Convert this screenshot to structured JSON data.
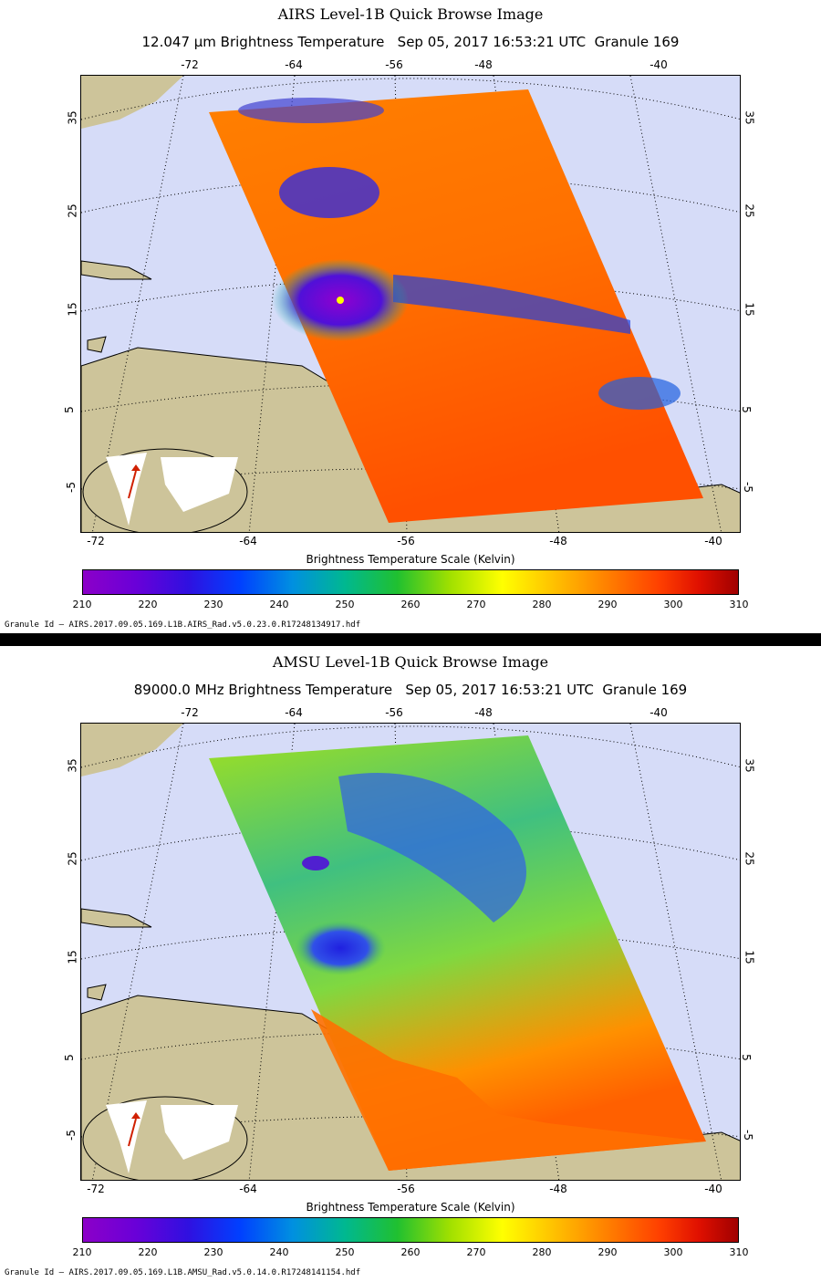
{
  "panels": [
    {
      "title": "AIRS Level-1B Quick Browse Image",
      "subtitle": "12.047 μm Brightness Temperature   Sep 05, 2017 16:53:21 UTC  Granule 169",
      "colorbar_title": "Brightness Temperature Scale (Kelvin)",
      "granule": "Granule Id — AIRS.2017.09.05.169.L1B.AIRS_Rad.v5.0.23.0.R17248134917.hdf",
      "swath_style": "ir"
    },
    {
      "title": "AMSU Level-1B Quick Browse Image",
      "subtitle": "89000.0 MHz Brightness Temperature   Sep 05, 2017 16:53:21 UTC  Granule 169",
      "colorbar_title": "Brightness Temperature Scale (Kelvin)",
      "granule": "Granule Id — AIRS.2017.09.05.169.L1B.AMSU_Rad.v5.0.14.0.R17248141154.hdf",
      "swath_style": "mw"
    }
  ],
  "lon_top": [
    "-72",
    "-64",
    "-56",
    "-48",
    "-40"
  ],
  "lon_bottom": [
    "-72",
    "-64",
    "-56",
    "-48",
    "-40"
  ],
  "lat": [
    "35",
    "25",
    "15",
    "5",
    "-5"
  ],
  "colorbar_ticks": [
    "210",
    "220",
    "230",
    "240",
    "250",
    "260",
    "270",
    "280",
    "290",
    "300",
    "310"
  ],
  "colors": {
    "ocean": "#d6dcf8",
    "land": "#cdc49a",
    "cold": "#8c00c8",
    "warm": "#ff6000"
  }
}
